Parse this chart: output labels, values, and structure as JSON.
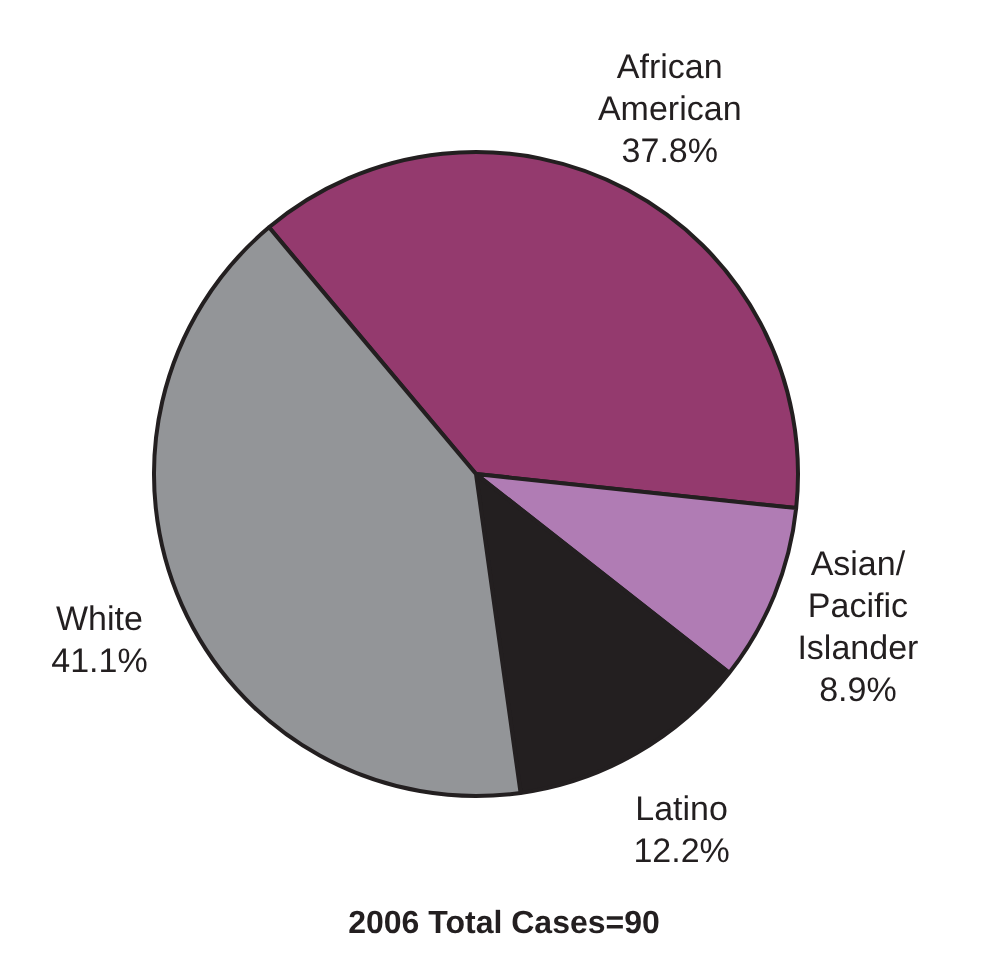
{
  "chart_data": {
    "type": "pie",
    "title": "2006 Total Cases=90",
    "categories": [
      "African American",
      "Asian/Pacific Islander",
      "Latino",
      "White"
    ],
    "values": [
      37.8,
      8.9,
      12.2,
      41.1
    ],
    "colors": [
      "#943a6e",
      "#b07cb4",
      "#231f20",
      "#939598"
    ],
    "value_labels": [
      "37.8%",
      "8.9%",
      "12.2%",
      "41.1%"
    ],
    "legend": false
  }
}
